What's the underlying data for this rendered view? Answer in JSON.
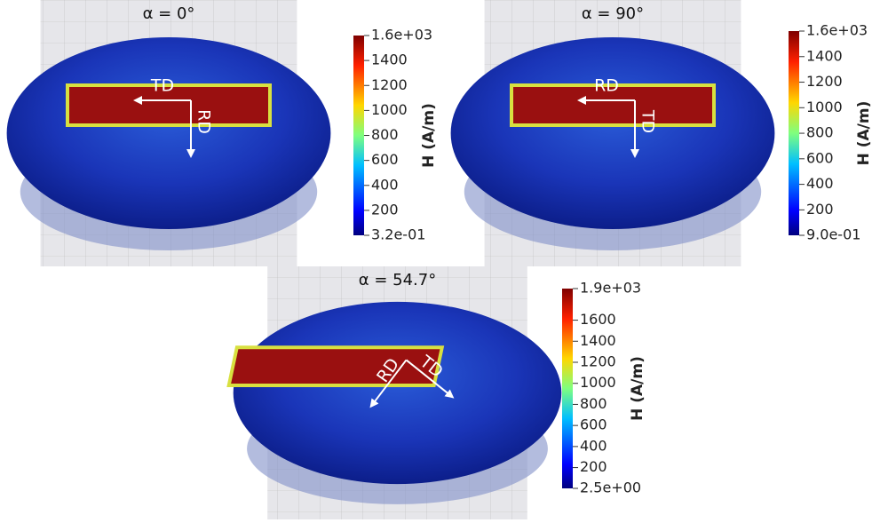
{
  "panels": [
    {
      "title": "α = 0°",
      "arrows": [
        "TD",
        "RD"
      ],
      "colorbar": {
        "label": "H (A/m)",
        "range": [
          0.32,
          1600
        ],
        "ticks": [
          {
            "value": 1600,
            "label": "1.6e+03"
          },
          1400,
          1200,
          1000,
          800,
          600,
          400,
          200,
          {
            "value": 0.32,
            "label": "3.2e-01"
          }
        ]
      }
    },
    {
      "title": "α = 90°",
      "arrows": [
        "RD",
        "TD"
      ],
      "colorbar": {
        "label": "H (A/m)",
        "range": [
          0.9,
          1600
        ],
        "ticks": [
          {
            "value": 1600,
            "label": "1.6e+03"
          },
          1400,
          1200,
          1000,
          800,
          600,
          400,
          200,
          {
            "value": 0.9,
            "label": "9.0e-01"
          }
        ]
      }
    },
    {
      "title": "α = 54.7°",
      "arrows": [
        "RD",
        "TD"
      ],
      "colorbar": {
        "label": "H (A/m)",
        "range": [
          2.5,
          1900
        ],
        "ticks": [
          {
            "value": 1900,
            "label": "1.9e+03"
          },
          1600,
          1400,
          1200,
          1000,
          800,
          600,
          400,
          200,
          {
            "value": 2.5,
            "label": "2.5e+00"
          }
        ]
      }
    }
  ]
}
